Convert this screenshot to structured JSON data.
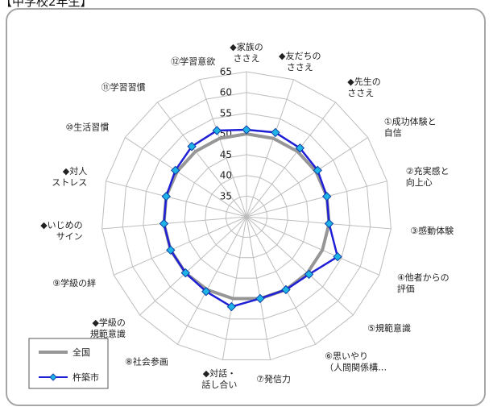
{
  "header": "【中学校2年生】",
  "chart_data": {
    "type": "radar",
    "categories": [
      "◆家族の\nささえ",
      "◆友だちの\nささえ",
      "◆先生の\nささえ",
      "①成功体験と\n自信",
      "②充実感と\n向上心",
      "③感動体験",
      "④他者からの\n評価",
      "⑤規範意識",
      "⑥思いやり\n（人間関係構…",
      "⑦発信力",
      "◆対話・\n話し合い",
      "⑧社会参画",
      "◆学級の\n規範意識",
      "⑨学級の絆",
      "◆いじめの\nサイン",
      "◆対人\nストレス",
      "⑩生活習慣",
      "⑪学習習慣",
      "⑫学習意欲"
    ],
    "r_ticks": [
      35,
      40,
      45,
      50,
      55,
      60,
      65
    ],
    "r_range": [
      30,
      65
    ],
    "grid": true,
    "legend_position": "bottom-left",
    "series": [
      {
        "name": "全国",
        "color": "#969696",
        "marker": "none",
        "values": [
          50,
          50,
          50,
          50,
          50,
          50,
          50,
          50,
          50,
          50,
          50,
          50,
          50,
          50,
          50,
          50,
          50,
          50,
          50
        ]
      },
      {
        "name": "杵築市",
        "color": "#1f1fd6",
        "marker_color": "#1fb4e6",
        "marker": "diamond",
        "values": [
          51,
          51.5,
          51,
          50.5,
          50,
          50,
          54,
          50.5,
          50,
          50,
          52,
          50.5,
          50,
          50,
          50,
          50,
          50.5,
          51.5,
          52
        ]
      }
    ]
  }
}
